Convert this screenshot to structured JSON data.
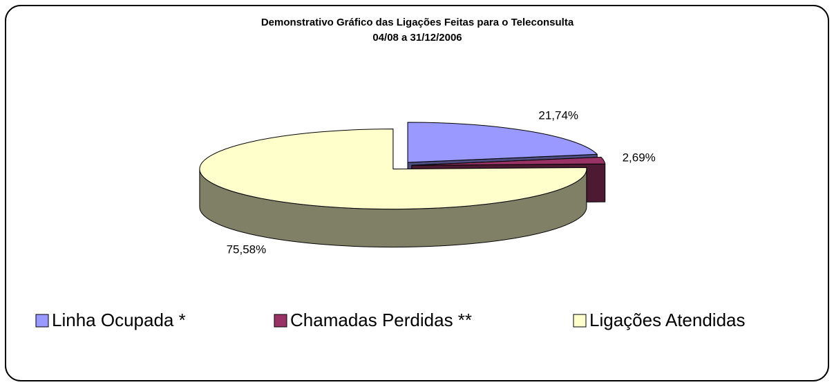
{
  "chart_data": {
    "type": "pie",
    "title": "Demonstrativo Gráfico das Ligações Feitas para o Teleconsulta",
    "subtitle": "04/08 a 31/12/2006",
    "categories": [
      "Linha Ocupada *",
      "Chamadas Perdidas **",
      "Ligações Atendidas"
    ],
    "values": [
      21.74,
      2.69,
      75.58
    ],
    "value_labels": [
      "21,74%",
      "2,69%",
      "75,58%"
    ],
    "colors": [
      "#9999ff",
      "#993366",
      "#ffffcc"
    ],
    "legend": "bottom"
  }
}
